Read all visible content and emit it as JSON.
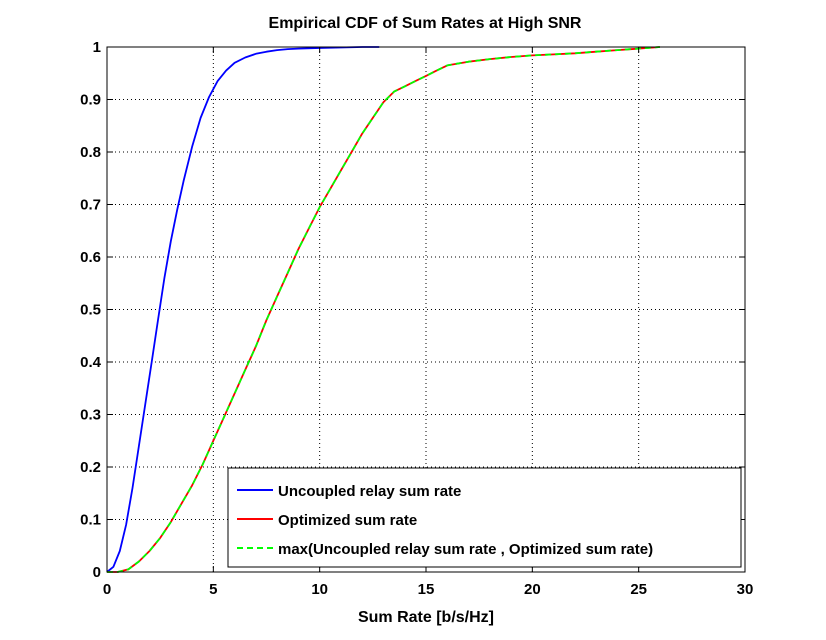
{
  "chart_data": {
    "type": "line",
    "title": "Empirical CDF of Sum Rates at High SNR",
    "xlabel": "Sum Rate [b/s/Hz]",
    "ylabel": "",
    "xlim": [
      0,
      30
    ],
    "ylim": [
      0,
      1
    ],
    "xticks": [
      "0",
      "5",
      "10",
      "15",
      "20",
      "25",
      "30"
    ],
    "yticks": [
      "0",
      "0.1",
      "0.2",
      "0.3",
      "0.4",
      "0.5",
      "0.6",
      "0.7",
      "0.8",
      "0.9",
      "1"
    ],
    "grid": true,
    "legend_position": "bottom-right",
    "series": [
      {
        "name": "Uncoupled relay sum rate",
        "color": "#0000ff",
        "dash": "solid",
        "x": [
          0,
          0.3,
          0.6,
          0.9,
          1.2,
          1.5,
          1.8,
          2.1,
          2.4,
          2.7,
          3.0,
          3.3,
          3.6,
          4.0,
          4.4,
          4.8,
          5.2,
          5.6,
          6.0,
          6.5,
          7.0,
          7.5,
          8.0,
          8.5,
          9.0,
          10.0,
          11.0,
          12.0,
          12.8
        ],
        "y": [
          0,
          0.01,
          0.04,
          0.09,
          0.16,
          0.24,
          0.32,
          0.4,
          0.48,
          0.56,
          0.63,
          0.69,
          0.745,
          0.81,
          0.865,
          0.905,
          0.935,
          0.955,
          0.97,
          0.98,
          0.987,
          0.991,
          0.994,
          0.996,
          0.997,
          0.998,
          0.999,
          1.0,
          1.0
        ]
      },
      {
        "name": "Optimized sum rate",
        "color": "#ff0000",
        "dash": "solid",
        "x": [
          0,
          0.5,
          1.0,
          1.5,
          2.0,
          2.5,
          3.0,
          3.5,
          4.0,
          4.5,
          5.0,
          5.5,
          6.0,
          6.5,
          7.0,
          7.5,
          8.0,
          8.5,
          9.0,
          9.5,
          10.0,
          10.5,
          11.0,
          11.5,
          12.0,
          12.5,
          13.0,
          13.5,
          14.0,
          14.5,
          15.0,
          15.5,
          16.0,
          17.0,
          18.0,
          19.0,
          20.0,
          21.0,
          22.0,
          23.0,
          24.0,
          25.0,
          26.0
        ],
        "y": [
          0,
          0.0,
          0.005,
          0.02,
          0.04,
          0.065,
          0.095,
          0.13,
          0.165,
          0.205,
          0.25,
          0.295,
          0.34,
          0.385,
          0.43,
          0.48,
          0.525,
          0.57,
          0.615,
          0.655,
          0.695,
          0.73,
          0.765,
          0.8,
          0.835,
          0.865,
          0.895,
          0.915,
          0.925,
          0.935,
          0.945,
          0.955,
          0.965,
          0.972,
          0.977,
          0.981,
          0.984,
          0.986,
          0.988,
          0.991,
          0.994,
          0.997,
          1.0
        ]
      },
      {
        "name": "max(Uncoupled relay sum rate , Optimized sum rate)",
        "color": "#00ff00",
        "dash": "dashed",
        "x": [
          0,
          0.5,
          1.0,
          1.5,
          2.0,
          2.5,
          3.0,
          3.5,
          4.0,
          4.5,
          5.0,
          5.5,
          6.0,
          6.5,
          7.0,
          7.5,
          8.0,
          8.5,
          9.0,
          9.5,
          10.0,
          10.5,
          11.0,
          11.5,
          12.0,
          12.5,
          13.0,
          13.5,
          14.0,
          14.5,
          15.0,
          15.5,
          16.0,
          17.0,
          18.0,
          19.0,
          20.0,
          21.0,
          22.0,
          23.0,
          24.0,
          25.0,
          26.0
        ],
        "y": [
          0,
          0.0,
          0.005,
          0.02,
          0.04,
          0.065,
          0.095,
          0.13,
          0.165,
          0.205,
          0.25,
          0.295,
          0.34,
          0.385,
          0.43,
          0.48,
          0.525,
          0.57,
          0.615,
          0.655,
          0.695,
          0.73,
          0.765,
          0.8,
          0.835,
          0.865,
          0.895,
          0.915,
          0.925,
          0.935,
          0.945,
          0.955,
          0.965,
          0.972,
          0.977,
          0.981,
          0.984,
          0.986,
          0.988,
          0.991,
          0.994,
          0.997,
          1.0
        ]
      }
    ]
  }
}
